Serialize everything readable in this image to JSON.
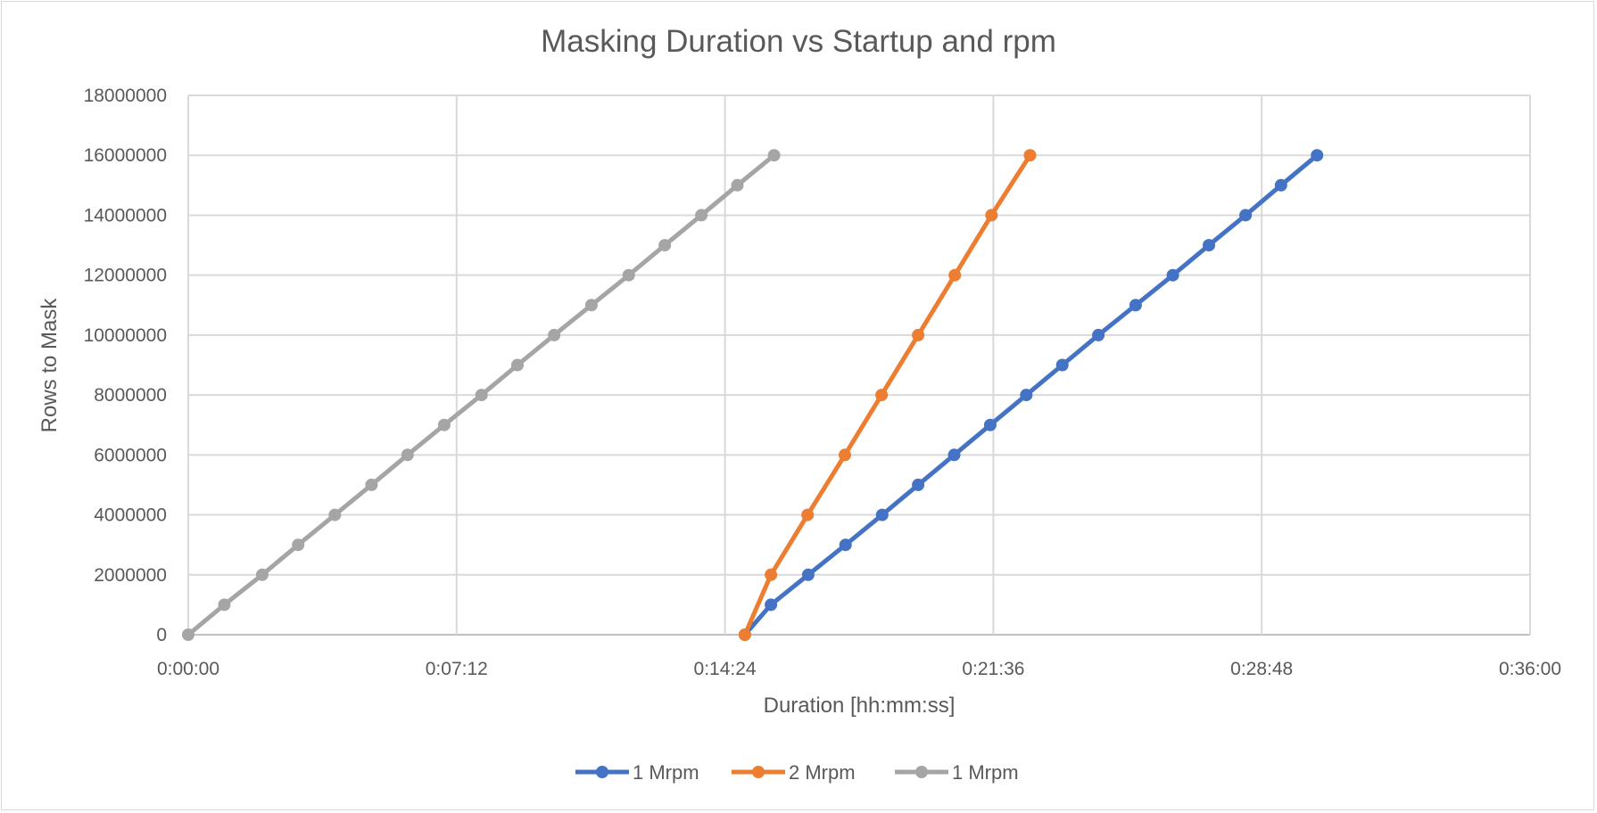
{
  "chart_data": {
    "type": "line",
    "title": "Masking Duration vs Startup and rpm",
    "xlabel": "Duration [hh:mm:ss]",
    "ylabel": "Rows to Mask",
    "xlim": [
      "0:00:00",
      "0:36:00"
    ],
    "ylim": [
      0,
      18000000
    ],
    "x_ticks": [
      "0:00:00",
      "0:07:12",
      "0:14:24",
      "0:21:36",
      "0:28:48",
      "0:36:00"
    ],
    "y_ticks": [
      "0",
      "2000000",
      "4000000",
      "6000000",
      "8000000",
      "10000000",
      "12000000",
      "14000000",
      "16000000",
      "18000000"
    ],
    "grid": true,
    "legend_position": "bottom",
    "series": [
      {
        "name": "1 Mrpm",
        "color": "#4472C4",
        "points": [
          [
            "0:14:56",
            0
          ],
          [
            "0:15:38",
            1000000
          ],
          [
            "0:16:38",
            2000000
          ],
          [
            "0:17:38",
            3000000
          ],
          [
            "0:18:37",
            4000000
          ],
          [
            "0:19:35",
            5000000
          ],
          [
            "0:20:33",
            6000000
          ],
          [
            "0:21:31",
            7000000
          ],
          [
            "0:22:29",
            8000000
          ],
          [
            "0:23:27",
            9000000
          ],
          [
            "0:24:25",
            10000000
          ],
          [
            "0:25:25",
            11000000
          ],
          [
            "0:26:25",
            12000000
          ],
          [
            "0:27:23",
            13000000
          ],
          [
            "0:28:22",
            14000000
          ],
          [
            "0:29:19",
            15000000
          ],
          [
            "0:30:17",
            16000000
          ]
        ]
      },
      {
        "name": "2 Mrpm",
        "color": "#ED7D31",
        "points": [
          [
            "0:14:56",
            0
          ],
          [
            "0:15:38",
            2000000
          ],
          [
            "0:16:37",
            4000000
          ],
          [
            "0:17:37",
            6000000
          ],
          [
            "0:18:36",
            8000000
          ],
          [
            "0:19:35",
            10000000
          ],
          [
            "0:20:34",
            12000000
          ],
          [
            "0:21:33",
            14000000
          ],
          [
            "0:22:35",
            16000000
          ]
        ]
      },
      {
        "name": "1 Mrpm",
        "color": "#A5A5A5",
        "points": [
          [
            "0:00:00",
            0
          ],
          [
            "0:00:58",
            1000000
          ],
          [
            "0:01:59",
            2000000
          ],
          [
            "0:02:57",
            3000000
          ],
          [
            "0:03:56",
            4000000
          ],
          [
            "0:04:55",
            5000000
          ],
          [
            "0:05:53",
            6000000
          ],
          [
            "0:06:52",
            7000000
          ],
          [
            "0:07:52",
            8000000
          ],
          [
            "0:08:50",
            9000000
          ],
          [
            "0:09:49",
            10000000
          ],
          [
            "0:10:49",
            11000000
          ],
          [
            "0:11:49",
            12000000
          ],
          [
            "0:12:47",
            13000000
          ],
          [
            "0:13:46",
            14000000
          ],
          [
            "0:14:44",
            15000000
          ],
          [
            "0:15:43",
            16000000
          ]
        ]
      }
    ]
  }
}
